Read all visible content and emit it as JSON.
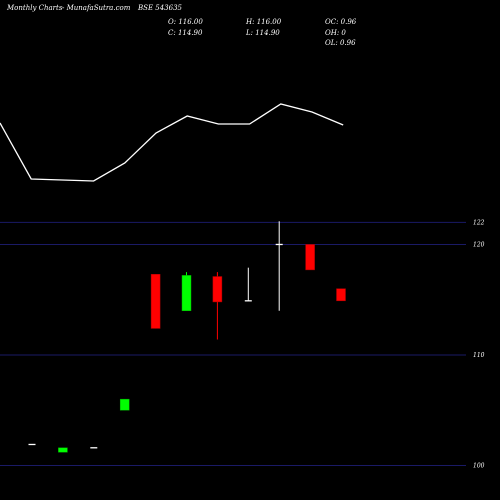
{
  "header": {
    "brand": "Monthly Charts",
    "site": "- MunafaSutra.com",
    "symbol": "BSE 543635",
    "ohlc": {
      "open": "O: 116.00",
      "high": "H: 116.00",
      "change_oc": "OC: 0.96",
      "close": "C: 114.90",
      "low": "L: 114.90",
      "change_oh": "OH: 0",
      "change_ol": "OL: 0.96"
    }
  },
  "colors": {
    "background": "#000000",
    "up": "#00ff00",
    "down": "#ff0000",
    "doji": "#ffffff",
    "grid": "#1a1a66",
    "line": "#ffffff"
  },
  "chart_data": {
    "type": "candlestick",
    "yticks": [
      100,
      110,
      120,
      122
    ],
    "ytick_labels": [
      "100",
      "110",
      "120",
      "122"
    ],
    "ylim": [
      99.5,
      123.3
    ],
    "candles": [
      {
        "open": 101.9,
        "high": 101.9,
        "low": 101.9,
        "close": 101.9
      },
      {
        "open": 101.2,
        "high": 101.6,
        "low": 101.2,
        "close": 101.6
      },
      {
        "open": 101.6,
        "high": 101.6,
        "low": 101.6,
        "close": 101.6
      },
      {
        "open": 105.0,
        "high": 106.0,
        "low": 105.0,
        "close": 106.0
      },
      {
        "open": 117.3,
        "high": 117.3,
        "low": 112.4,
        "close": 112.4
      },
      {
        "open": 114.0,
        "high": 117.5,
        "low": 114.0,
        "close": 117.2
      },
      {
        "open": 117.1,
        "high": 117.5,
        "low": 111.4,
        "close": 114.8
      },
      {
        "open": 114.9,
        "high": 117.9,
        "low": 114.9,
        "close": 114.9
      },
      {
        "open": 120.0,
        "high": 122.1,
        "low": 114.0,
        "close": 120.0
      },
      {
        "open": 120.0,
        "high": 120.0,
        "low": 117.7,
        "close": 117.7
      },
      {
        "open": 116.0,
        "high": 116.0,
        "low": 114.9,
        "close": 114.9
      }
    ],
    "line": [
      123,
      179,
      180,
      181,
      163,
      133,
      116,
      124,
      124,
      104,
      112,
      125
    ]
  }
}
